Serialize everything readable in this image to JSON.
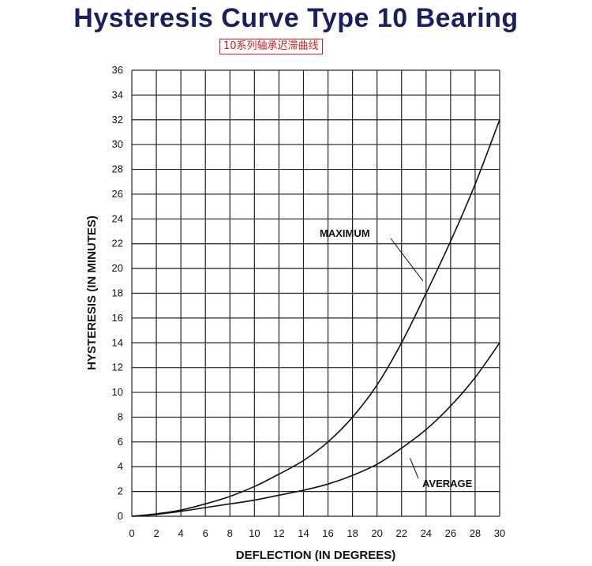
{
  "header": {
    "title": "Hysteresis Curve Type 10 Bearing",
    "subtitle": "10系列轴承迟滞曲线",
    "title_color": "#1a1f5e",
    "subtitle_color": "#d02020"
  },
  "chart_data": {
    "type": "line",
    "title": "Hysteresis Curve Type 10 Bearing",
    "xlabel": "DEFLECTION (IN DEGREES)",
    "ylabel": "HYSTERESIS (IN MINUTES)",
    "xlim": [
      0,
      30
    ],
    "ylim": [
      0,
      36
    ],
    "xticks": [
      0,
      2,
      4,
      6,
      8,
      10,
      12,
      14,
      16,
      18,
      20,
      22,
      24,
      26,
      28,
      30
    ],
    "yticks": [
      0,
      2,
      4,
      6,
      8,
      10,
      12,
      14,
      16,
      18,
      20,
      22,
      24,
      26,
      28,
      30,
      32,
      34,
      36
    ],
    "grid": true,
    "x": [
      0,
      2,
      4,
      6,
      8,
      10,
      12,
      14,
      16,
      18,
      20,
      22,
      24,
      26,
      28,
      30
    ],
    "series": [
      {
        "name": "MAXIMUM",
        "values": [
          0,
          0.2,
          0.5,
          1.0,
          1.6,
          2.4,
          3.4,
          4.5,
          6.0,
          8.0,
          10.6,
          14.0,
          18.0,
          22.2,
          26.8,
          32.0
        ]
      },
      {
        "name": "AVERAGE",
        "values": [
          0,
          0.15,
          0.4,
          0.7,
          1.0,
          1.3,
          1.7,
          2.1,
          2.6,
          3.3,
          4.2,
          5.5,
          7.0,
          8.9,
          11.2,
          14.0
        ]
      }
    ],
    "annotations": [
      {
        "text": "MAXIMUM",
        "points_to_x": 24,
        "points_to_y": 19
      },
      {
        "text": "AVERAGE",
        "points_to_x": 22.5,
        "points_to_y": 4.5
      }
    ]
  }
}
